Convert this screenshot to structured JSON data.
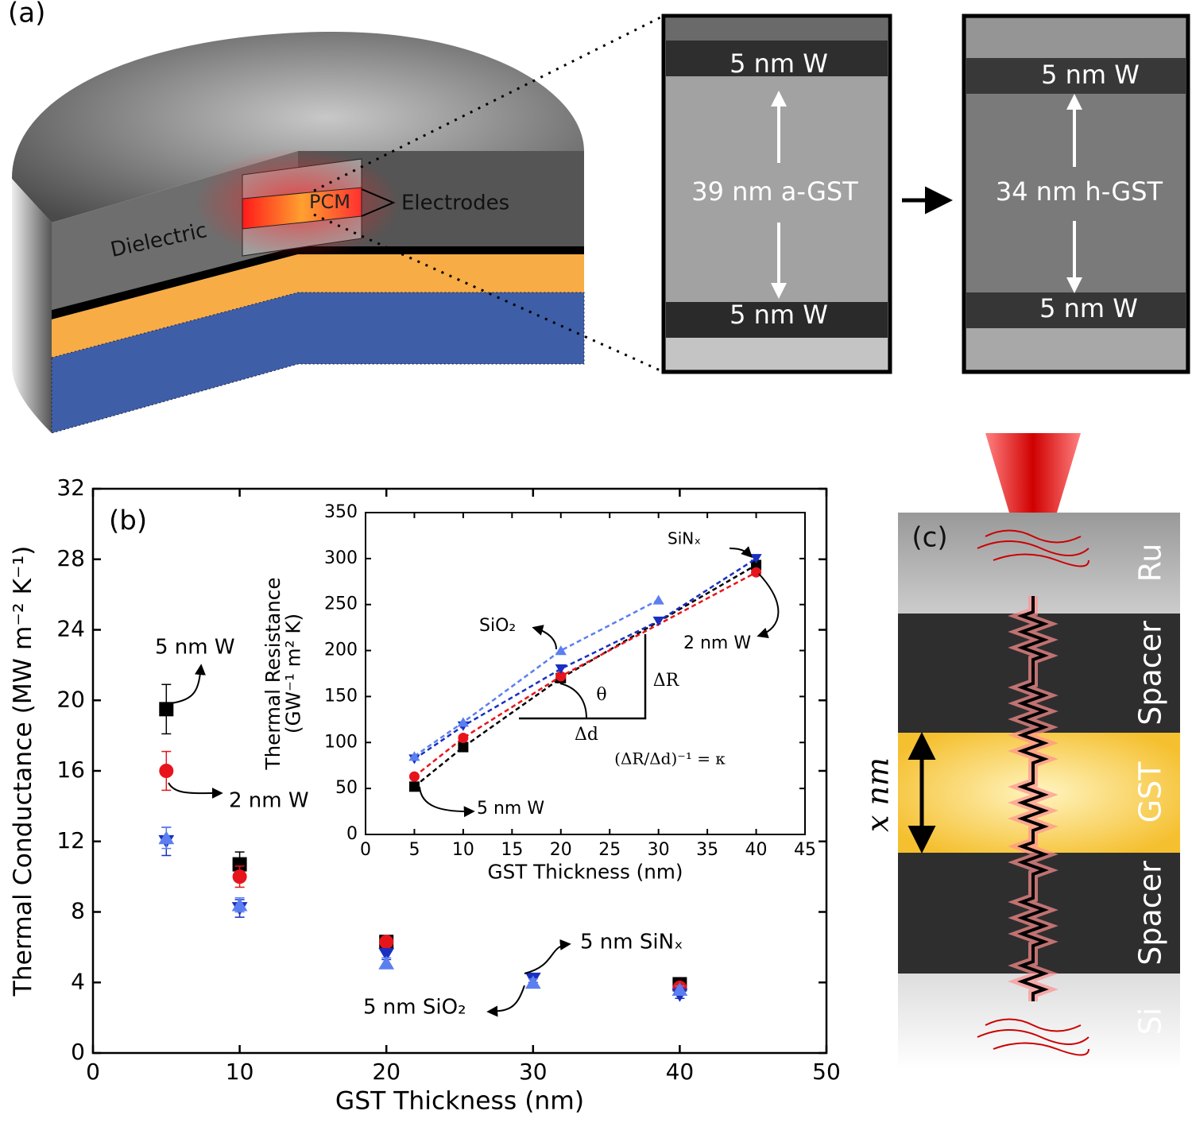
{
  "panel_a": {
    "label": "(a)",
    "dielectric": "Dielectric",
    "pcm": "PCM",
    "electrodes": "Electrodes",
    "tem_left": {
      "top": "5 nm W",
      "middle": "39 nm a-GST",
      "bottom": "5 nm W"
    },
    "tem_right": {
      "top": "5 nm W",
      "middle": "34 nm h-GST",
      "bottom": "5 nm W"
    }
  },
  "chart_data": [
    {
      "type": "scatter",
      "label": "(b)",
      "xlabel": "GST Thickness (nm)",
      "ylabel": "Thermal Conductance (MW m⁻² K⁻¹)",
      "xlim": [
        0,
        50
      ],
      "xticks": [
        0,
        10,
        20,
        30,
        40,
        50
      ],
      "ylim": [
        0,
        32
      ],
      "yticks": [
        0,
        4,
        8,
        12,
        16,
        20,
        24,
        28,
        32
      ],
      "series": [
        {
          "name": "5 nm W",
          "color": "#000000",
          "marker": "square",
          "x": [
            5,
            10,
            20,
            40
          ],
          "values": [
            19.5,
            10.7,
            6.3,
            3.9
          ],
          "errors": [
            1.4,
            0.7,
            0.2,
            0.2
          ]
        },
        {
          "name": "2 nm W",
          "color": "#e8141b",
          "marker": "circle",
          "x": [
            5,
            10,
            20,
            40
          ],
          "values": [
            16,
            10,
            6.3,
            3.7
          ],
          "errors": [
            1.1,
            0.6,
            0.2,
            0.2
          ]
        },
        {
          "name": "5 nm SiNₓ",
          "color": "#1a2fc0",
          "marker": "triangle-down",
          "x": [
            5,
            10,
            20,
            30,
            40
          ],
          "values": [
            12,
            8.2,
            5.6,
            4.2,
            3.3
          ],
          "errors": [
            0.8,
            0.5,
            0.3,
            0.2,
            0.2
          ]
        },
        {
          "name": "5 nm SiO₂",
          "color": "#5b7ff0",
          "marker": "triangle-up",
          "x": [
            5,
            10,
            20,
            30,
            40
          ],
          "values": [
            12.2,
            8.4,
            5.1,
            4.0,
            3.6
          ],
          "errors": [
            0.6,
            0.4,
            0.3,
            0.2,
            0.2
          ]
        }
      ]
    },
    {
      "type": "scatter",
      "fit": true,
      "xlabel": "GST Thickness (nm)",
      "ylabel": [
        "Thermal Resistance",
        "(GW⁻¹ m² K)"
      ],
      "xlim": [
        0,
        45
      ],
      "xticks": [
        0,
        5,
        10,
        15,
        20,
        25,
        30,
        35,
        40,
        45
      ],
      "ylim": [
        0,
        350
      ],
      "yticks": [
        0,
        50,
        100,
        150,
        200,
        250,
        300,
        350
      ],
      "annotations": [
        "θ",
        "ΔR",
        "Δd",
        "(ΔR/Δd)⁻¹ = κ"
      ],
      "series": [
        {
          "name": "5 nm W",
          "color": "#000000",
          "marker": "square",
          "x": [
            5,
            10,
            20,
            40
          ],
          "values": [
            52,
            95,
            170,
            293
          ]
        },
        {
          "name": "2 nm W",
          "color": "#e8141b",
          "marker": "circle",
          "x": [
            5,
            10,
            20,
            40
          ],
          "values": [
            63,
            105,
            172,
            285
          ]
        },
        {
          "name": "SiNₓ",
          "color": "#1a2fc0",
          "marker": "triangle-down",
          "x": [
            5,
            10,
            20,
            30,
            40
          ],
          "values": [
            82,
            118,
            180,
            232,
            300
          ]
        },
        {
          "name": "SiO₂",
          "color": "#5b7ff0",
          "marker": "triangle-up",
          "x": [
            5,
            10,
            20,
            30
          ],
          "values": [
            85,
            122,
            200,
            255
          ]
        }
      ]
    }
  ],
  "panel_c": {
    "label": "(c)",
    "layers": [
      "Ru",
      "Spacer",
      "GST",
      "Spacer",
      "Si"
    ],
    "thickness": "x nm"
  }
}
